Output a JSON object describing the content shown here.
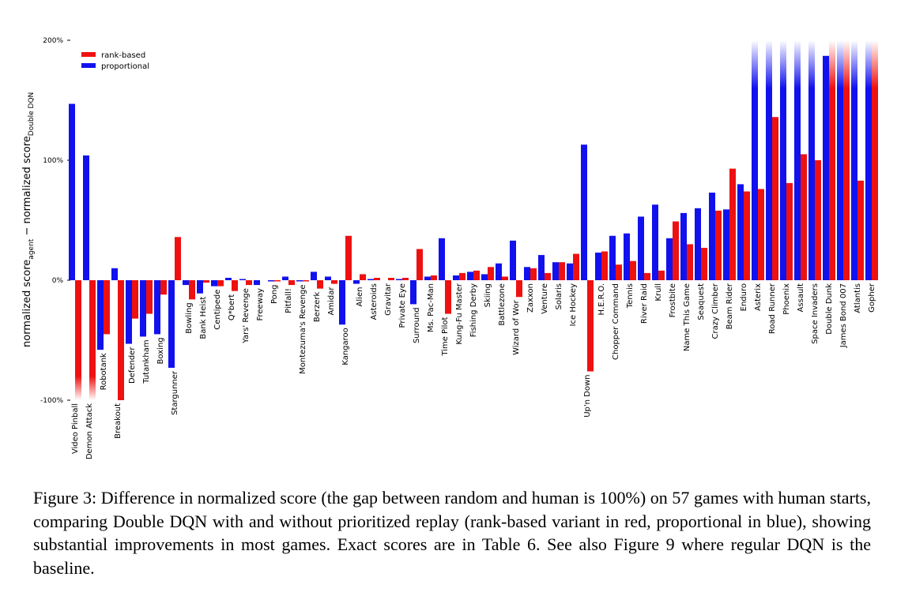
{
  "chart_data": {
    "type": "bar",
    "ylabel_main": "normalized score",
    "ylabel_sub1": "agent",
    "ylabel_dash": " − normalized score",
    "ylabel_sub2": "Double DQN",
    "ylim": [
      -100,
      200
    ],
    "ytick_labels": [
      "200%",
      "100%",
      "0%",
      "-100%"
    ],
    "ytick_values": [
      200,
      100,
      0,
      -100
    ],
    "legend": [
      {
        "name": "rank-based",
        "color": "#ee1111"
      },
      {
        "name": "proportional",
        "color": "#1111ee"
      }
    ],
    "legend_position": "top-left",
    "colors": {
      "rank": "#ee1111",
      "prop": "#1111ee"
    },
    "games": [
      {
        "name": "Video Pinball",
        "rank": -100,
        "prop": 147,
        "fade": "rank"
      },
      {
        "name": "Demon Attack",
        "rank": -100,
        "prop": 104,
        "fade": "rank"
      },
      {
        "name": "Robotank",
        "rank": -45,
        "prop": -58
      },
      {
        "name": "Breakout",
        "rank": -100,
        "prop": 10
      },
      {
        "name": "Defender",
        "rank": -32,
        "prop": -53
      },
      {
        "name": "Tutankham",
        "rank": -28,
        "prop": -47
      },
      {
        "name": "Boxing",
        "rank": -12,
        "prop": -45
      },
      {
        "name": "Stargunner",
        "rank": 36,
        "prop": -73
      },
      {
        "name": "Bowling",
        "rank": -16,
        "prop": -4
      },
      {
        "name": "Bank Heist",
        "rank": -2,
        "prop": -11
      },
      {
        "name": "Centipede",
        "rank": -5,
        "prop": -5
      },
      {
        "name": "Q*bert",
        "rank": -9,
        "prop": 2
      },
      {
        "name": "Yars' Revenge",
        "rank": -4,
        "prop": 1
      },
      {
        "name": "Freeway",
        "rank": 0,
        "prop": -4
      },
      {
        "name": "Pong",
        "rank": -1,
        "prop": -1
      },
      {
        "name": "Pitfall!",
        "rank": -4,
        "prop": 3
      },
      {
        "name": "Montezuma's Revenge",
        "rank": -1,
        "prop": -1
      },
      {
        "name": "Berzerk",
        "rank": -7,
        "prop": 7
      },
      {
        "name": "Amidar",
        "rank": -3,
        "prop": 3
      },
      {
        "name": "Kangaroo",
        "rank": 37,
        "prop": -37
      },
      {
        "name": "Alien",
        "rank": 5,
        "prop": -3
      },
      {
        "name": "Asteroids",
        "rank": 2,
        "prop": 1
      },
      {
        "name": "Gravitar",
        "rank": 2,
        "prop": 0
      },
      {
        "name": "Private Eye",
        "rank": 2,
        "prop": 1
      },
      {
        "name": "Surround",
        "rank": 26,
        "prop": -20
      },
      {
        "name": "Ms. Pac-Man",
        "rank": 4,
        "prop": 3
      },
      {
        "name": "Time Pilot",
        "rank": -28,
        "prop": 35
      },
      {
        "name": "Kung-Fu Master",
        "rank": 6,
        "prop": 4
      },
      {
        "name": "Fishing Derby",
        "rank": 8,
        "prop": 7
      },
      {
        "name": "Skiing",
        "rank": 11,
        "prop": 5
      },
      {
        "name": "Battlezone",
        "rank": 3,
        "prop": 14
      },
      {
        "name": "Wizard of Wor",
        "rank": -14,
        "prop": 33
      },
      {
        "name": "Zaxxon",
        "rank": 10,
        "prop": 11
      },
      {
        "name": "Venture",
        "rank": 6,
        "prop": 21
      },
      {
        "name": "Solaris",
        "rank": 15,
        "prop": 15
      },
      {
        "name": "Ice Hockey",
        "rank": 22,
        "prop": 14
      },
      {
        "name": "Up'n Down",
        "rank": -76,
        "prop": 113
      },
      {
        "name": "H.E.R.O.",
        "rank": 24,
        "prop": 23
      },
      {
        "name": "Chopper Command",
        "rank": 13,
        "prop": 37
      },
      {
        "name": "Tennis",
        "rank": 16,
        "prop": 39
      },
      {
        "name": "River Raid",
        "rank": 6,
        "prop": 53
      },
      {
        "name": "Krull",
        "rank": 8,
        "prop": 63
      },
      {
        "name": "Frostbite",
        "rank": 49,
        "prop": 35
      },
      {
        "name": "Name This Game",
        "rank": 30,
        "prop": 56
      },
      {
        "name": "Seaquest",
        "rank": 27,
        "prop": 60
      },
      {
        "name": "Crazy Climber",
        "rank": 58,
        "prop": 73
      },
      {
        "name": "Beam Rider",
        "rank": 93,
        "prop": 59
      },
      {
        "name": "Enduro",
        "rank": 74,
        "prop": 80
      },
      {
        "name": "Asterix",
        "rank": 76,
        "prop": 200,
        "fade": "prop"
      },
      {
        "name": "Road Runner",
        "rank": 136,
        "prop": 200,
        "fade": "prop"
      },
      {
        "name": "Phoenix",
        "rank": 81,
        "prop": 200,
        "fade": "prop"
      },
      {
        "name": "Assault",
        "rank": 105,
        "prop": 200,
        "fade": "prop"
      },
      {
        "name": "Space Invaders",
        "rank": 100,
        "prop": 200,
        "fade": "prop"
      },
      {
        "name": "Double Dunk",
        "rank": 200,
        "prop": 187,
        "fade": "rank"
      },
      {
        "name": "James Bond 007",
        "rank": 200,
        "prop": 200,
        "fade": "both"
      },
      {
        "name": "Atlantis",
        "rank": 83,
        "prop": 200,
        "fade": "prop"
      },
      {
        "name": "Gopher",
        "rank": 200,
        "prop": 200,
        "fade": "both"
      }
    ]
  },
  "caption": {
    "text": "Figure 3:   Difference in normalized score (the gap between random and human is 100%) on 57 games with human starts, comparing Double DQN with and without prioritized replay (rank-based variant in red, proportional in blue), showing substantial improvements in most games. Exact scores are in Table 6. See also Figure 9 where regular DQN is the baseline."
  }
}
